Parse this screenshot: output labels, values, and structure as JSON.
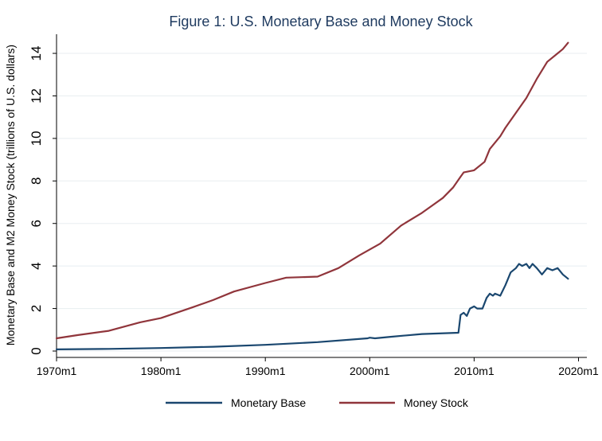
{
  "chart_data": {
    "type": "line",
    "title": "Figure 1: U.S. Monetary Base and Money Stock",
    "ylabel": "Monetary Base and M2 Money Stock (trillions of U.S. dollars)",
    "xlabel": "",
    "xlim": [
      1970,
      2020.8
    ],
    "ylim": [
      -0.3,
      14.9
    ],
    "x_ticks": [
      {
        "value": 1970,
        "label": "1970m1"
      },
      {
        "value": 1980,
        "label": "1980m1"
      },
      {
        "value": 1990,
        "label": "1990m1"
      },
      {
        "value": 2000,
        "label": "2000m1"
      },
      {
        "value": 2010,
        "label": "2010m1"
      },
      {
        "value": 2020,
        "label": "2020m1"
      }
    ],
    "y_ticks": [
      0,
      2,
      4,
      6,
      8,
      10,
      12,
      14
    ],
    "grid": "horizontal",
    "legend_position": "bottom",
    "series": [
      {
        "name": "Monetary Base",
        "color": "#1a476f",
        "points": [
          [
            1970.0,
            0.08
          ],
          [
            1975.0,
            0.1
          ],
          [
            1980.0,
            0.14
          ],
          [
            1985.0,
            0.2
          ],
          [
            1990.0,
            0.29
          ],
          [
            1995.0,
            0.42
          ],
          [
            1999.8,
            0.6
          ],
          [
            2000.0,
            0.63
          ],
          [
            2000.5,
            0.6
          ],
          [
            2002.0,
            0.67
          ],
          [
            2005.0,
            0.8
          ],
          [
            2008.5,
            0.86
          ],
          [
            2008.7,
            1.7
          ],
          [
            2009.0,
            1.8
          ],
          [
            2009.3,
            1.65
          ],
          [
            2009.6,
            2.0
          ],
          [
            2010.0,
            2.1
          ],
          [
            2010.3,
            2.0
          ],
          [
            2010.8,
            2.0
          ],
          [
            2011.2,
            2.5
          ],
          [
            2011.5,
            2.7
          ],
          [
            2011.8,
            2.6
          ],
          [
            2012.0,
            2.7
          ],
          [
            2012.5,
            2.6
          ],
          [
            2013.0,
            3.1
          ],
          [
            2013.5,
            3.7
          ],
          [
            2014.0,
            3.9
          ],
          [
            2014.3,
            4.1
          ],
          [
            2014.6,
            4.0
          ],
          [
            2015.0,
            4.1
          ],
          [
            2015.3,
            3.9
          ],
          [
            2015.6,
            4.1
          ],
          [
            2016.0,
            3.9
          ],
          [
            2016.5,
            3.6
          ],
          [
            2017.0,
            3.9
          ],
          [
            2017.5,
            3.8
          ],
          [
            2018.0,
            3.9
          ],
          [
            2018.5,
            3.6
          ],
          [
            2019.0,
            3.4
          ]
        ]
      },
      {
        "name": "Money Stock",
        "color": "#90353b",
        "points": [
          [
            1970.0,
            0.6
          ],
          [
            1972.0,
            0.75
          ],
          [
            1975.0,
            0.95
          ],
          [
            1978.0,
            1.35
          ],
          [
            1980.0,
            1.55
          ],
          [
            1983.0,
            2.05
          ],
          [
            1985.0,
            2.4
          ],
          [
            1987.0,
            2.8
          ],
          [
            1990.0,
            3.2
          ],
          [
            1992.0,
            3.45
          ],
          [
            1995.0,
            3.5
          ],
          [
            1997.0,
            3.9
          ],
          [
            1999.0,
            4.5
          ],
          [
            2001.0,
            5.05
          ],
          [
            2003.0,
            5.9
          ],
          [
            2005.0,
            6.5
          ],
          [
            2007.0,
            7.2
          ],
          [
            2008.0,
            7.7
          ],
          [
            2008.7,
            8.2
          ],
          [
            2009.0,
            8.4
          ],
          [
            2010.0,
            8.5
          ],
          [
            2011.0,
            8.9
          ],
          [
            2011.5,
            9.5
          ],
          [
            2012.5,
            10.1
          ],
          [
            2013.0,
            10.5
          ],
          [
            2014.0,
            11.2
          ],
          [
            2015.0,
            11.9
          ],
          [
            2016.0,
            12.8
          ],
          [
            2017.0,
            13.6
          ],
          [
            2018.0,
            14.0
          ],
          [
            2018.5,
            14.2
          ],
          [
            2019.0,
            14.5
          ]
        ]
      }
    ]
  }
}
